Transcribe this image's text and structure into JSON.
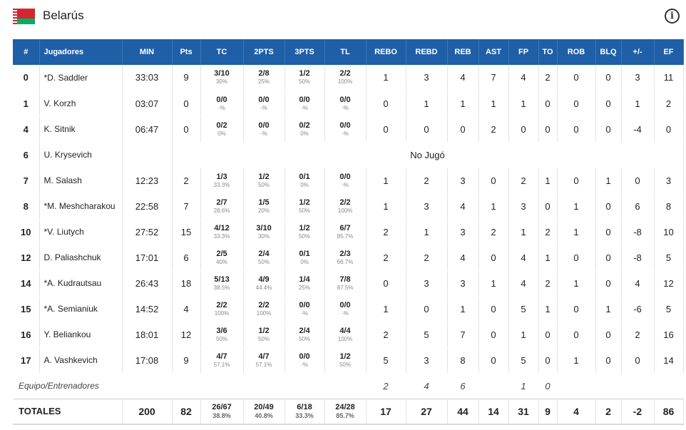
{
  "team": {
    "name": "Belarús"
  },
  "columns": [
    "#",
    "Jugadores",
    "MIN",
    "Pts",
    "TC",
    "2PTS",
    "3PTS",
    "TL",
    "REBO",
    "REBD",
    "REB",
    "AST",
    "FP",
    "TO",
    "ROB",
    "BLQ",
    "+/-",
    "EF"
  ],
  "players": [
    {
      "num": "0",
      "name": "*D. Saddler",
      "min": "33:03",
      "pts": "9",
      "tc": "3/10",
      "tc_pct": "30%",
      "p2": "2/8",
      "p2_pct": "25%",
      "p3": "1/2",
      "p3_pct": "50%",
      "tl": "2/2",
      "tl_pct": "100%",
      "rebo": "1",
      "rebd": "3",
      "reb": "4",
      "ast": "7",
      "fp": "4",
      "to": "2",
      "rob": "0",
      "blq": "0",
      "pm": "3",
      "ef": "11"
    },
    {
      "num": "1",
      "name": "V. Korzh",
      "min": "03:07",
      "pts": "0",
      "tc": "0/0",
      "tc_pct": "-%",
      "p2": "0/0",
      "p2_pct": "-%",
      "p3": "0/0",
      "p3_pct": "-%",
      "tl": "0/0",
      "tl_pct": "-%",
      "rebo": "0",
      "rebd": "1",
      "reb": "1",
      "ast": "1",
      "fp": "1",
      "to": "0",
      "rob": "0",
      "blq": "0",
      "pm": "1",
      "ef": "2"
    },
    {
      "num": "4",
      "name": "K. Sitnik",
      "min": "06:47",
      "pts": "0",
      "tc": "0/2",
      "tc_pct": "0%",
      "p2": "0/0",
      "p2_pct": "-%",
      "p3": "0/2",
      "p3_pct": "0%",
      "tl": "0/0",
      "tl_pct": "-%",
      "rebo": "0",
      "rebd": "0",
      "reb": "0",
      "ast": "2",
      "fp": "0",
      "to": "0",
      "rob": "0",
      "blq": "0",
      "pm": "-4",
      "ef": "0"
    },
    {
      "num": "6",
      "name": "U. Krysevich",
      "dnp": "No Jugó"
    },
    {
      "num": "7",
      "name": "M. Salash",
      "min": "12:23",
      "pts": "2",
      "tc": "1/3",
      "tc_pct": "33.3%",
      "p2": "1/2",
      "p2_pct": "50%",
      "p3": "0/1",
      "p3_pct": "0%",
      "tl": "0/0",
      "tl_pct": "-%",
      "rebo": "1",
      "rebd": "2",
      "reb": "3",
      "ast": "0",
      "fp": "2",
      "to": "1",
      "rob": "0",
      "blq": "1",
      "pm": "0",
      "ef": "3"
    },
    {
      "num": "8",
      "name": "*M. Meshcharakou",
      "min": "22:58",
      "pts": "7",
      "tc": "2/7",
      "tc_pct": "28.6%",
      "p2": "1/5",
      "p2_pct": "20%",
      "p3": "1/2",
      "p3_pct": "50%",
      "tl": "2/2",
      "tl_pct": "100%",
      "rebo": "1",
      "rebd": "3",
      "reb": "4",
      "ast": "1",
      "fp": "3",
      "to": "0",
      "rob": "1",
      "blq": "0",
      "pm": "6",
      "ef": "8"
    },
    {
      "num": "10",
      "name": "*V. Liutych",
      "min": "27:52",
      "pts": "15",
      "tc": "4/12",
      "tc_pct": "33.3%",
      "p2": "3/10",
      "p2_pct": "30%",
      "p3": "1/2",
      "p3_pct": "50%",
      "tl": "6/7",
      "tl_pct": "85.7%",
      "rebo": "2",
      "rebd": "1",
      "reb": "3",
      "ast": "2",
      "fp": "1",
      "to": "2",
      "rob": "1",
      "blq": "0",
      "pm": "-8",
      "ef": "10"
    },
    {
      "num": "12",
      "name": "D. Paliashchuk",
      "min": "17:01",
      "pts": "6",
      "tc": "2/5",
      "tc_pct": "40%",
      "p2": "2/4",
      "p2_pct": "50%",
      "p3": "0/1",
      "p3_pct": "0%",
      "tl": "2/3",
      "tl_pct": "66.7%",
      "rebo": "2",
      "rebd": "2",
      "reb": "4",
      "ast": "0",
      "fp": "4",
      "to": "1",
      "rob": "0",
      "blq": "0",
      "pm": "-8",
      "ef": "5"
    },
    {
      "num": "14",
      "name": "*A. Kudrautsau",
      "min": "26:43",
      "pts": "18",
      "tc": "5/13",
      "tc_pct": "38.5%",
      "p2": "4/9",
      "p2_pct": "44.4%",
      "p3": "1/4",
      "p3_pct": "25%",
      "tl": "7/8",
      "tl_pct": "87.5%",
      "rebo": "0",
      "rebd": "3",
      "reb": "3",
      "ast": "1",
      "fp": "4",
      "to": "2",
      "rob": "1",
      "blq": "0",
      "pm": "4",
      "ef": "12"
    },
    {
      "num": "15",
      "name": "*A. Semianiuk",
      "min": "14:52",
      "pts": "4",
      "tc": "2/2",
      "tc_pct": "100%",
      "p2": "2/2",
      "p2_pct": "100%",
      "p3": "0/0",
      "p3_pct": "-%",
      "tl": "0/0",
      "tl_pct": "-%",
      "rebo": "1",
      "rebd": "0",
      "reb": "1",
      "ast": "0",
      "fp": "5",
      "to": "1",
      "rob": "0",
      "blq": "1",
      "pm": "-6",
      "ef": "5"
    },
    {
      "num": "16",
      "name": "Y. Beliankou",
      "min": "18:01",
      "pts": "12",
      "tc": "3/6",
      "tc_pct": "50%",
      "p2": "1/2",
      "p2_pct": "50%",
      "p3": "2/4",
      "p3_pct": "50%",
      "tl": "4/4",
      "tl_pct": "100%",
      "rebo": "2",
      "rebd": "5",
      "reb": "7",
      "ast": "0",
      "fp": "1",
      "to": "0",
      "rob": "0",
      "blq": "0",
      "pm": "2",
      "ef": "16"
    },
    {
      "num": "17",
      "name": "A. Vashkevich",
      "min": "17:08",
      "pts": "9",
      "tc": "4/7",
      "tc_pct": "57.1%",
      "p2": "4/7",
      "p2_pct": "57.1%",
      "p3": "0/0",
      "p3_pct": "-%",
      "tl": "1/2",
      "tl_pct": "50%",
      "rebo": "5",
      "rebd": "3",
      "reb": "8",
      "ast": "0",
      "fp": "5",
      "to": "0",
      "rob": "1",
      "blq": "0",
      "pm": "0",
      "ef": "14"
    }
  ],
  "team_row": {
    "label": "Equipo/Entrenadores",
    "rebo": "2",
    "rebd": "4",
    "reb": "6",
    "fp": "1",
    "to": "0"
  },
  "totals": {
    "label": "TOTALES",
    "min": "200",
    "pts": "82",
    "tc": "26/67",
    "tc_pct": "38.8%",
    "p2": "20/49",
    "p2_pct": "40.8%",
    "p3": "6/18",
    "p3_pct": "33.3%",
    "tl": "24/28",
    "tl_pct": "85.7%",
    "rebo": "17",
    "rebd": "27",
    "reb": "44",
    "ast": "14",
    "fp": "31",
    "to": "9",
    "rob": "4",
    "blq": "2",
    "pm": "-2",
    "ef": "86"
  }
}
